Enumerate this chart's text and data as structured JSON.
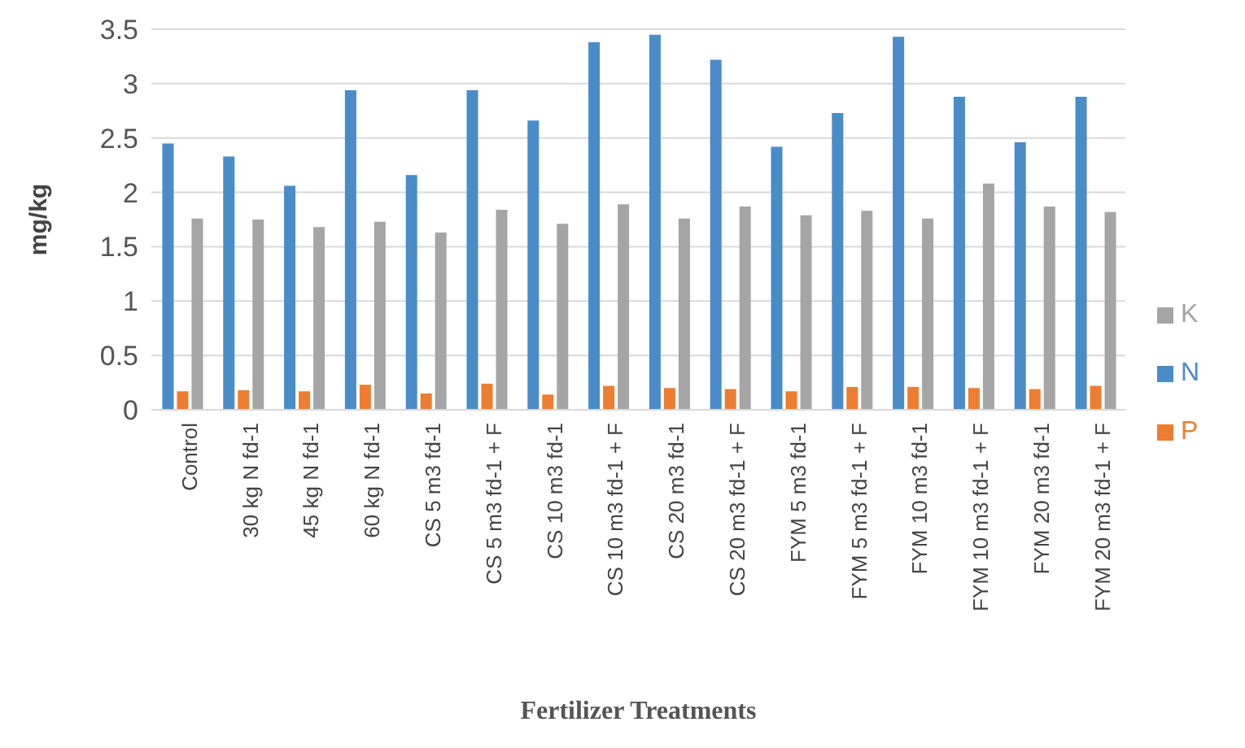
{
  "chart_data": {
    "type": "bar",
    "xlabel": "Fertilizer Treatments",
    "ylabel": "mg/kg",
    "categories": [
      "Control",
      "30 kg N fd-1",
      "45 kg N fd-1",
      "60 kg N fd-1",
      "CS 5 m3 fd-1",
      "CS 5 m3 fd-1 + F",
      "CS 10 m3 fd-1",
      "CS 10 m3 fd-1 + F",
      "CS 20 m3 fd-1",
      "CS 20 m3 fd-1 + F",
      "FYM 5 m3 fd-1",
      "FYM 5 m3 fd-1 + F",
      "FYM 10 m3 fd-1",
      "FYM 10 m3 fd-1 + F",
      "FYM 20 m3 fd-1",
      "FYM 20 m3 fd-1 + F"
    ],
    "series": [
      {
        "name": "N",
        "color": "#4a8cc8",
        "values": [
          2.45,
          2.33,
          2.06,
          2.94,
          2.16,
          2.94,
          2.66,
          3.38,
          3.45,
          3.22,
          2.42,
          2.73,
          3.43,
          2.88,
          2.46,
          2.88
        ]
      },
      {
        "name": "P",
        "color": "#ed7d31",
        "values": [
          0.17,
          0.18,
          0.17,
          0.23,
          0.15,
          0.24,
          0.14,
          0.22,
          0.2,
          0.19,
          0.17,
          0.21,
          0.21,
          0.2,
          0.19,
          0.22
        ]
      },
      {
        "name": "K",
        "color": "#a5a5a5",
        "values": [
          1.76,
          1.75,
          1.68,
          1.73,
          1.63,
          1.84,
          1.71,
          1.89,
          1.76,
          1.87,
          1.79,
          1.83,
          1.76,
          2.08,
          1.87,
          1.82
        ]
      }
    ],
    "ylim": [
      0,
      3.5
    ],
    "yticks": [
      0,
      0.5,
      1,
      1.5,
      2,
      2.5,
      3,
      3.5
    ],
    "grid": "y",
    "legend": "right"
  }
}
